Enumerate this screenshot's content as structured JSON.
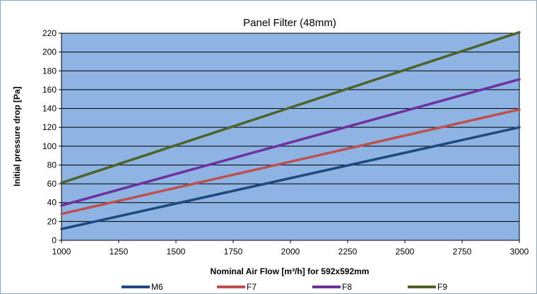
{
  "chart_data": {
    "type": "line",
    "title": "Panel Filter (48mm)",
    "xlabel": "Nominal Air Flow [m³/h] for 592x592mm",
    "ylabel": "Initial pressure drop [Pa]",
    "xlim": [
      1000,
      3000
    ],
    "ylim": [
      0,
      220
    ],
    "x_ticks": [
      1000,
      1250,
      1500,
      1750,
      2000,
      2250,
      2500,
      2750,
      3000
    ],
    "y_ticks": [
      0,
      20,
      40,
      60,
      80,
      100,
      120,
      140,
      160,
      180,
      200,
      220
    ],
    "grid": true,
    "plot_background": "#8db4e2",
    "legend_position": "bottom",
    "series": [
      {
        "name": "M6",
        "color": "#1f497d",
        "x": [
          1000,
          3000
        ],
        "values": [
          12,
          120
        ]
      },
      {
        "name": "F7",
        "color": "#c0504d",
        "x": [
          1000,
          3000
        ],
        "values": [
          28,
          139
        ]
      },
      {
        "name": "F8",
        "color": "#7030a0",
        "x": [
          1000,
          3000
        ],
        "values": [
          37,
          171
        ]
      },
      {
        "name": "F9",
        "color": "#4f6228",
        "x": [
          1000,
          3000
        ],
        "values": [
          61,
          221
        ]
      }
    ]
  }
}
